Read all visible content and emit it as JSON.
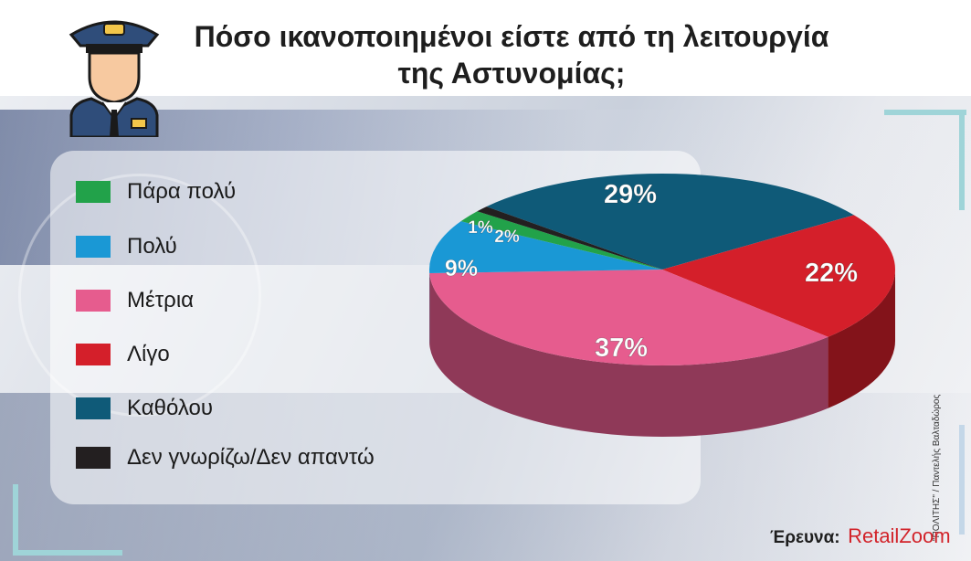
{
  "header": {
    "title_line1": "Πόσο ικανοποιημένοι είστε από τη λειτουργία",
    "title_line2": "της Αστυνομίας;"
  },
  "icon": {
    "name": "police-officer-icon"
  },
  "chart_data": {
    "type": "pie",
    "title": "Πόσο ικανοποιημένοι είστε από τη λειτουργία της Αστυνομίας;",
    "slices": [
      {
        "label": "Πάρα πολύ",
        "value": 2,
        "display": "2%",
        "color": "#22a24a"
      },
      {
        "label": "Πολύ",
        "value": 9,
        "display": "9%",
        "color": "#1a98d5"
      },
      {
        "label": "Μέτρια",
        "value": 37,
        "display": "37%",
        "color": "#e65c8e"
      },
      {
        "label": "Λίγο",
        "value": 22,
        "display": "22%",
        "color": "#d41f2a"
      },
      {
        "label": "Καθόλου",
        "value": 29,
        "display": "29%",
        "color": "#0f5a78"
      },
      {
        "label": "Δεν γνωρίζω/Δεν απαντώ",
        "value": 1,
        "display": "1%",
        "color": "#231f20"
      }
    ],
    "legend_position": "left"
  },
  "footer": {
    "source_label": "Έρευνα:",
    "source_brand": "RetailZoom",
    "credit": "\"ΠΟΛΙΤΗΣ\" / Παντελής Βαλταδώρος"
  }
}
